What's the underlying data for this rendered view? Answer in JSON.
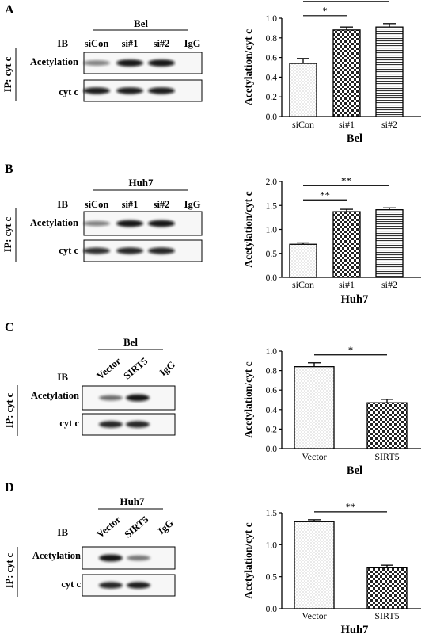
{
  "panels": [
    {
      "letter": "A",
      "blot": {
        "group": "Bel",
        "ib": "IB",
        "ip": "IP: cyt c",
        "lanes": [
          "siCon",
          "si#1",
          "si#2",
          "IgG"
        ],
        "rows": [
          {
            "label": "Acetylation",
            "bands": [
              0.35,
              0.95,
              0.95,
              0
            ]
          },
          {
            "label": "cyt c",
            "bands": [
              0.9,
              0.9,
              0.9,
              0
            ]
          }
        ]
      },
      "chart_data": {
        "type": "bar",
        "categories": [
          "siCon",
          "si#1",
          "si#2"
        ],
        "values": [
          0.54,
          0.88,
          0.91
        ],
        "errors": [
          0.05,
          0.03,
          0.035
        ],
        "patterns": [
          "dots",
          "checker",
          "hlines"
        ],
        "ylabel": "Acetylation/cyt c",
        "xlabel": "Bel",
        "ylim": [
          0,
          1.0
        ],
        "yticks": [
          "0.0",
          "0.2",
          "0.4",
          "0.6",
          "0.8",
          "1.0"
        ],
        "significance": [
          {
            "from": 0,
            "to": 1,
            "label": "*"
          },
          {
            "from": 0,
            "to": 2,
            "label": "*"
          }
        ]
      }
    },
    {
      "letter": "B",
      "blot": {
        "group": "Huh7",
        "ib": "IB",
        "ip": "IP: cyt c",
        "lanes": [
          "siCon",
          "si#1",
          "si#2",
          "IgG"
        ],
        "rows": [
          {
            "label": "Acetylation",
            "bands": [
              0.35,
              0.95,
              0.95,
              0
            ]
          },
          {
            "label": "cyt c",
            "bands": [
              0.8,
              0.85,
              0.85,
              0
            ]
          }
        ]
      },
      "chart_data": {
        "type": "bar",
        "categories": [
          "siCon",
          "si#1",
          "si#2"
        ],
        "values": [
          0.69,
          1.37,
          1.41
        ],
        "errors": [
          0.03,
          0.05,
          0.04
        ],
        "patterns": [
          "dots",
          "checker",
          "hlines"
        ],
        "ylabel": "Acetylation/cyt c",
        "xlabel": "Huh7",
        "ylim": [
          0,
          2.0
        ],
        "yticks": [
          "0.0",
          "0.5",
          "1.0",
          "1.5",
          "2.0"
        ],
        "significance": [
          {
            "from": 0,
            "to": 1,
            "label": "**"
          },
          {
            "from": 0,
            "to": 2,
            "label": "**"
          }
        ]
      }
    },
    {
      "letter": "C",
      "blot": {
        "group": "Bel",
        "ib": "IB",
        "ip": "IP: cyt c",
        "lanes": [
          "Vector",
          "SIRT5",
          "IgG"
        ],
        "rows": [
          {
            "label": "Acetylation",
            "bands": [
              0.45,
              0.95,
              0
            ]
          },
          {
            "label": "cyt c",
            "bands": [
              0.85,
              0.85,
              0
            ]
          }
        ]
      },
      "chart_data": {
        "type": "bar",
        "categories": [
          "Vector",
          "SIRT5"
        ],
        "values": [
          0.84,
          0.47
        ],
        "errors": [
          0.04,
          0.035
        ],
        "patterns": [
          "dots",
          "checker"
        ],
        "ylabel": "Acetylation/cyt c",
        "xlabel": "Bel",
        "ylim": [
          0,
          1.0
        ],
        "yticks": [
          "0.0",
          "0.2",
          "0.4",
          "0.6",
          "0.8",
          "1.0"
        ],
        "significance": [
          {
            "from": 0,
            "to": 1,
            "label": "*"
          }
        ]
      }
    },
    {
      "letter": "D",
      "blot": {
        "group": "Huh7",
        "ib": "IB",
        "ip": "IP: cyt c",
        "lanes": [
          "Vector",
          "SIRT5",
          "IgG"
        ],
        "rows": [
          {
            "label": "Acetylation",
            "bands": [
              0.95,
              0.4,
              0
            ]
          },
          {
            "label": "cyt c",
            "bands": [
              0.85,
              0.9,
              0
            ]
          }
        ]
      },
      "chart_data": {
        "type": "bar",
        "categories": [
          "Vector",
          "SIRT5"
        ],
        "values": [
          1.36,
          0.64
        ],
        "errors": [
          0.03,
          0.04
        ],
        "patterns": [
          "dots",
          "checker"
        ],
        "ylabel": "Acetylation/cyt c",
        "xlabel": "Huh7",
        "ylim": [
          0,
          1.5
        ],
        "yticks": [
          "0.0",
          "0.5",
          "1.0",
          "1.5"
        ],
        "significance": [
          {
            "from": 0,
            "to": 1,
            "label": "**"
          }
        ]
      }
    }
  ]
}
